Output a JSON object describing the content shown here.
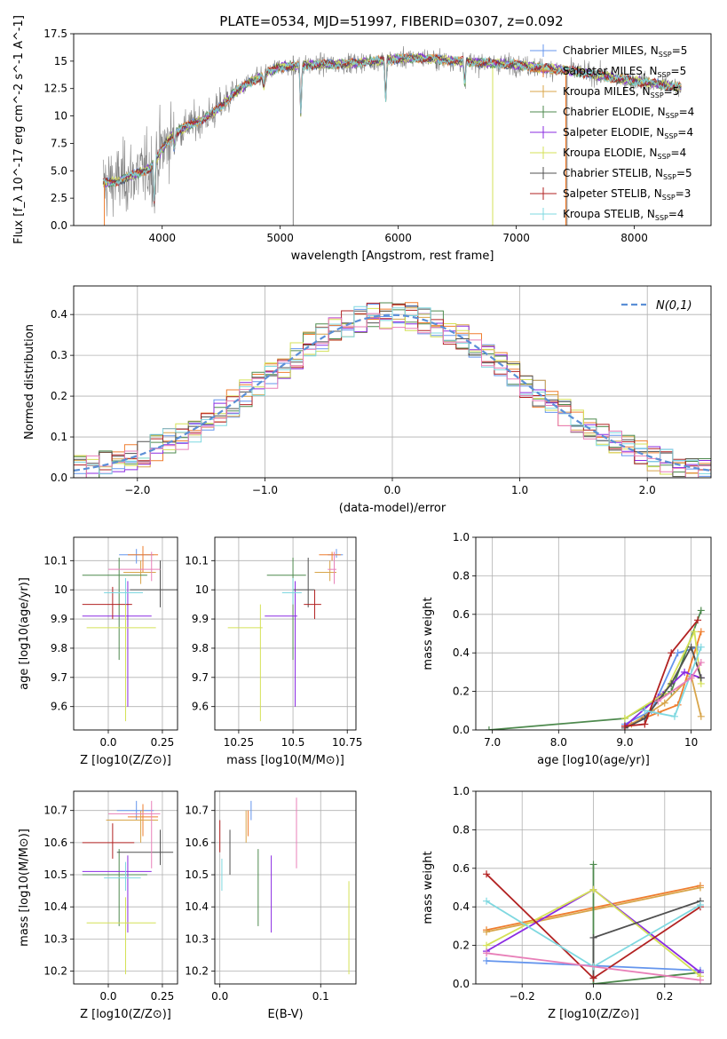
{
  "figure_title": "PLATE=0534, MJD=51997, FIBERID=0307, z=0.092",
  "colors": {
    "Chabrier MILES": "#6495ed",
    "Salpeter MILES": "#ef7d2e",
    "Kroupa MILES": "#d8a54a",
    "Chabrier ELODIE": "#4e8a4e",
    "Salpeter ELODIE": "#8a2be2",
    "Kroupa ELODIE": "#d4e157",
    "Chabrier STELIB": "#505050",
    "Salpeter STELIB": "#b22222",
    "Kroupa STELIB": "#7fd8e0",
    "data": "#808080",
    "extra_pink": "#e87fb8",
    "gaussian": "#5b8fd6",
    "grid": "#b0b0b0"
  },
  "chart_data": [
    {
      "id": "spectrum",
      "type": "line",
      "title": "PLATE=0534, MJD=51997, FIBERID=0307, z=0.092",
      "xlabel": "wavelength [Angstrom, rest frame]",
      "ylabel": "Flux [f_λ 10^-17 erg cm^-2 s^-1 A^-1]",
      "xlim": [
        3250,
        8650
      ],
      "ylim": [
        0,
        17.5
      ],
      "xticks": [
        4000,
        5000,
        6000,
        7000,
        8000
      ],
      "yticks": [
        0.0,
        2.5,
        5.0,
        7.5,
        10.0,
        12.5,
        15.0,
        17.5
      ],
      "grid": false,
      "legend_position": "top-right",
      "legend": [
        {
          "name": "Chabrier MILES",
          "label": "Chabrier MILES, N",
          "sub": "SSP",
          "n": "=5"
        },
        {
          "name": "Salpeter MILES",
          "label": "Salpeter MILES, N",
          "sub": "SSP",
          "n": "=5"
        },
        {
          "name": "Kroupa MILES",
          "label": "Kroupa MILES, N",
          "sub": "SSP",
          "n": "=5"
        },
        {
          "name": "Chabrier ELODIE",
          "label": "Chabrier ELODIE, N",
          "sub": "SSP",
          "n": "=4"
        },
        {
          "name": "Salpeter ELODIE",
          "label": "Salpeter ELODIE, N",
          "sub": "SSP",
          "n": "=4"
        },
        {
          "name": "Kroupa ELODIE",
          "label": "Kroupa ELODIE, N",
          "sub": "SSP",
          "n": "=4"
        },
        {
          "name": "Chabrier STELIB",
          "label": "Chabrier STELIB, N",
          "sub": "SSP",
          "n": "=5"
        },
        {
          "name": "Salpeter STELIB",
          "label": "Salpeter STELIB, N",
          "sub": "SSP",
          "n": "=3"
        },
        {
          "name": "Kroupa STELIB",
          "label": "Kroupa STELIB, N",
          "sub": "SSP",
          "n": "=4"
        }
      ],
      "continuum": {
        "wavelength": [
          3500,
          3600,
          3700,
          3800,
          3900,
          4000,
          4100,
          4200,
          4300,
          4400,
          4500,
          4600,
          4700,
          4800,
          4900,
          5000,
          5200,
          5400,
          5600,
          5800,
          6000,
          6200,
          6400,
          6600,
          6800,
          7000,
          7200,
          7400,
          7600,
          7800,
          8000,
          8200,
          8400
        ],
        "flux": [
          3.9,
          4.0,
          4.4,
          4.8,
          5.2,
          7.0,
          8.4,
          9.0,
          9.5,
          10.0,
          10.9,
          12.0,
          12.8,
          13.4,
          14.0,
          14.5,
          14.6,
          14.7,
          14.8,
          15.0,
          15.2,
          15.3,
          15.1,
          14.9,
          14.8,
          14.7,
          14.4,
          14.2,
          13.9,
          13.5,
          13.2,
          12.9,
          12.6
        ]
      },
      "dips": [
        {
          "wavelength": 3934,
          "flux": 1.5
        },
        {
          "wavelength": 4102,
          "flux": 6.9
        },
        {
          "wavelength": 4861,
          "flux": 12.6
        },
        {
          "wavelength": 5175,
          "flux": 9.9
        },
        {
          "wavelength": 5893,
          "flux": 11.2
        },
        {
          "wavelength": 6563,
          "flux": 12.6
        }
      ],
      "data_artifacts": [
        {
          "wavelength": 5110,
          "flux_low": 0.0,
          "flux_high": 15.5
        },
        {
          "wavelength": 7430,
          "flux_low": 0.0,
          "flux_high": 14.0
        }
      ]
    },
    {
      "id": "residuals",
      "type": "step",
      "xlabel": "(data-model)/error",
      "ylabel": "Normed distribution",
      "xlim": [
        -2.5,
        2.5
      ],
      "ylim": [
        0,
        0.47
      ],
      "xticks": [
        -2,
        -1,
        0,
        1,
        2
      ],
      "yticks": [
        0.0,
        0.1,
        0.2,
        0.3,
        0.4
      ],
      "grid": true,
      "legend_position": "top-right",
      "legend_label": "N(0,1)",
      "bin_width": 0.1,
      "bin_start": -2.5
    },
    {
      "id": "age_vs_Z",
      "type": "errorbar",
      "xlabel": "Z [log10(Z/Z⊙)]",
      "ylabel": "age [log10(age/yr)]",
      "xlim": [
        -0.16,
        0.32
      ],
      "ylim": [
        9.52,
        10.18
      ],
      "xticks": [
        0.0,
        0.25
      ],
      "yticks": [
        9.6,
        9.7,
        9.8,
        9.9,
        10.0,
        10.1
      ],
      "grid": true,
      "points": [
        {
          "series": "Chabrier MILES",
          "x": 0.13,
          "x_lo": 0.05,
          "x_hi": 0.21,
          "y": 10.12,
          "y_lo": 10.09,
          "y_hi": 10.14
        },
        {
          "series": "Salpeter MILES",
          "x": 0.16,
          "x_lo": 0.09,
          "x_hi": 0.23,
          "y": 10.12,
          "y_lo": 10.06,
          "y_hi": 10.15
        },
        {
          "series": "Kroupa MILES",
          "x": 0.15,
          "x_lo": 0.07,
          "x_hi": 0.22,
          "y": 10.06,
          "y_lo": 10.02,
          "y_hi": 10.1
        },
        {
          "series": "Chabrier ELODIE",
          "x": 0.05,
          "x_lo": -0.12,
          "x_hi": 0.18,
          "y": 10.05,
          "y_lo": 9.76,
          "y_hi": 10.11
        },
        {
          "series": "Salpeter ELODIE",
          "x": 0.09,
          "x_lo": -0.12,
          "x_hi": 0.2,
          "y": 9.91,
          "y_lo": 9.6,
          "y_hi": 10.03
        },
        {
          "series": "Kroupa ELODIE",
          "x": 0.08,
          "x_lo": -0.1,
          "x_hi": 0.22,
          "y": 9.87,
          "y_lo": 9.55,
          "y_hi": 10.03
        },
        {
          "series": "Chabrier STELIB",
          "x": 0.24,
          "x_lo": 0.1,
          "x_hi": 0.32,
          "y": 10.0,
          "y_lo": 9.94,
          "y_hi": 10.1
        },
        {
          "series": "Salpeter STELIB",
          "x": 0.02,
          "x_lo": -0.12,
          "x_hi": 0.11,
          "y": 9.95,
          "y_lo": 9.9,
          "y_hi": 10.01
        },
        {
          "series": "Kroupa STELIB",
          "x": 0.08,
          "x_lo": -0.02,
          "x_hi": 0.16,
          "y": 9.99,
          "y_lo": 9.95,
          "y_hi": 10.04
        },
        {
          "series": "extra_pink",
          "x": 0.2,
          "x_lo": 0.0,
          "x_hi": 0.24,
          "y": 10.07,
          "y_lo": 10.03,
          "y_hi": 10.13
        }
      ]
    },
    {
      "id": "age_vs_mass",
      "type": "errorbar",
      "xlabel": "mass [log10(M/M⊙)]",
      "ylabel": "",
      "xlim": [
        10.14,
        10.79
      ],
      "ylim": [
        9.52,
        10.18
      ],
      "xticks": [
        10.25,
        10.5,
        10.75
      ],
      "yticks": [
        9.6,
        9.7,
        9.8,
        9.9,
        10.0,
        10.1
      ],
      "grid": true,
      "points": [
        {
          "series": "Chabrier MILES",
          "x": 10.7,
          "x_lo": 10.66,
          "x_hi": 10.73,
          "y": 10.12,
          "y_lo": 10.11,
          "y_hi": 10.14
        },
        {
          "series": "Salpeter MILES",
          "x": 10.68,
          "x_lo": 10.62,
          "x_hi": 10.72,
          "y": 10.12,
          "y_lo": 10.1,
          "y_hi": 10.13
        },
        {
          "series": "Kroupa MILES",
          "x": 10.67,
          "x_lo": 10.6,
          "x_hi": 10.7,
          "y": 10.06,
          "y_lo": 10.03,
          "y_hi": 10.1
        },
        {
          "series": "Chabrier ELODIE",
          "x": 10.5,
          "x_lo": 10.38,
          "x_hi": 10.56,
          "y": 10.05,
          "y_lo": 9.76,
          "y_hi": 10.11
        },
        {
          "series": "Salpeter ELODIE",
          "x": 10.51,
          "x_lo": 10.37,
          "x_hi": 10.52,
          "y": 9.91,
          "y_lo": 9.6,
          "y_hi": 10.03
        },
        {
          "series": "Kroupa ELODIE",
          "x": 10.35,
          "x_lo": 10.2,
          "x_hi": 10.36,
          "y": 9.87,
          "y_lo": 9.55,
          "y_hi": 9.95
        },
        {
          "series": "Chabrier STELIB",
          "x": 10.57,
          "x_lo": 10.5,
          "x_hi": 10.6,
          "y": 10.0,
          "y_lo": 9.94,
          "y_hi": 10.11
        },
        {
          "series": "Salpeter STELIB",
          "x": 10.6,
          "x_lo": 10.55,
          "x_hi": 10.63,
          "y": 9.95,
          "y_lo": 9.9,
          "y_hi": 10.0
        },
        {
          "series": "Kroupa STELIB",
          "x": 10.5,
          "x_lo": 10.45,
          "x_hi": 10.54,
          "y": 9.99,
          "y_lo": 9.95,
          "y_hi": 10.04
        },
        {
          "series": "extra_pink",
          "x": 10.69,
          "x_lo": 10.66,
          "x_hi": 10.7,
          "y": 10.07,
          "y_lo": 10.02,
          "y_hi": 10.13
        }
      ]
    },
    {
      "id": "weight_vs_age",
      "type": "line",
      "xlabel": "age [log10(age/yr)]",
      "ylabel": "mass weight",
      "xlim": [
        6.75,
        10.3
      ],
      "ylim": [
        0,
        1.0
      ],
      "xticks": [
        7,
        8,
        9,
        10
      ],
      "yticks": [
        0.0,
        0.2,
        0.4,
        0.6,
        0.8,
        1.0
      ],
      "grid": true,
      "series": [
        {
          "name": "Chabrier MILES",
          "x": [
            9.0,
            9.4,
            9.8,
            10.1
          ],
          "y": [
            0.03,
            0.1,
            0.4,
            0.43
          ]
        },
        {
          "name": "Salpeter MILES",
          "x": [
            9.0,
            9.5,
            9.8,
            10.15
          ],
          "y": [
            0.02,
            0.09,
            0.13,
            0.51
          ]
        },
        {
          "name": "Kroupa MILES",
          "x": [
            9.1,
            9.6,
            10.0,
            10.15
          ],
          "y": [
            0.03,
            0.14,
            0.28,
            0.07
          ]
        },
        {
          "name": "Chabrier ELODIE",
          "x": [
            6.95,
            9.0,
            9.7,
            10.15
          ],
          "y": [
            0.0,
            0.06,
            0.2,
            0.62
          ]
        },
        {
          "name": "Salpeter ELODIE",
          "x": [
            9.0,
            9.5,
            9.9,
            10.15
          ],
          "y": [
            0.02,
            0.17,
            0.3,
            0.27
          ]
        },
        {
          "name": "Kroupa ELODIE",
          "x": [
            9.0,
            9.6,
            10.05,
            10.15
          ],
          "y": [
            0.06,
            0.19,
            0.51,
            0.24
          ]
        },
        {
          "name": "Chabrier STELIB",
          "x": [
            9.0,
            9.3,
            9.7,
            10.0,
            10.15
          ],
          "y": [
            0.01,
            0.06,
            0.24,
            0.43,
            0.27
          ]
        },
        {
          "name": "Salpeter STELIB",
          "x": [
            9.0,
            9.3,
            9.7,
            10.1
          ],
          "y": [
            0.02,
            0.03,
            0.4,
            0.57
          ]
        },
        {
          "name": "Kroupa STELIB",
          "x": [
            9.3,
            9.75,
            10.15
          ],
          "y": [
            0.1,
            0.07,
            0.43
          ]
        },
        {
          "name": "extra_pink",
          "x": [
            9.5,
            10.0,
            10.15
          ],
          "y": [
            0.15,
            0.27,
            0.35
          ]
        }
      ]
    },
    {
      "id": "mass_vs_Z",
      "type": "errorbar",
      "xlabel": "Z [log10(Z/Z⊙)]",
      "ylabel": "mass [log10(M/M⊙)]",
      "xlim": [
        -0.16,
        0.32
      ],
      "ylim": [
        10.16,
        10.76
      ],
      "xticks": [
        0.0,
        0.25
      ],
      "yticks": [
        10.2,
        10.3,
        10.4,
        10.5,
        10.6,
        10.7
      ],
      "grid": true,
      "points": [
        {
          "series": "Chabrier MILES",
          "x": 0.13,
          "x_lo": 0.04,
          "x_hi": 0.21,
          "y": 10.7,
          "y_lo": 10.67,
          "y_hi": 10.73
        },
        {
          "series": "Salpeter MILES",
          "x": 0.16,
          "x_lo": 0.09,
          "x_hi": 0.23,
          "y": 10.68,
          "y_lo": 10.62,
          "y_hi": 10.72
        },
        {
          "series": "Kroupa MILES",
          "x": 0.15,
          "x_lo": -0.01,
          "x_hi": 0.23,
          "y": 10.67,
          "y_lo": 10.6,
          "y_hi": 10.7
        },
        {
          "series": "Chabrier ELODIE",
          "x": 0.05,
          "x_lo": -0.12,
          "x_hi": 0.18,
          "y": 10.5,
          "y_lo": 10.34,
          "y_hi": 10.58
        },
        {
          "series": "Salpeter ELODIE",
          "x": 0.09,
          "x_lo": -0.12,
          "x_hi": 0.2,
          "y": 10.51,
          "y_lo": 10.32,
          "y_hi": 10.56
        },
        {
          "series": "Kroupa ELODIE",
          "x": 0.08,
          "x_lo": -0.1,
          "x_hi": 0.22,
          "y": 10.35,
          "y_lo": 10.19,
          "y_hi": 10.43
        },
        {
          "series": "Chabrier STELIB",
          "x": 0.24,
          "x_lo": 0.04,
          "x_hi": 0.3,
          "y": 10.57,
          "y_lo": 10.53,
          "y_hi": 10.64
        },
        {
          "series": "Salpeter STELIB",
          "x": 0.02,
          "x_lo": -0.12,
          "x_hi": 0.12,
          "y": 10.6,
          "y_lo": 10.55,
          "y_hi": 10.66
        },
        {
          "series": "Kroupa STELIB",
          "x": 0.08,
          "x_lo": -0.02,
          "x_hi": 0.15,
          "y": 10.49,
          "y_lo": 10.45,
          "y_hi": 10.54
        },
        {
          "series": "extra_pink",
          "x": 0.2,
          "x_lo": 0.0,
          "x_hi": 0.24,
          "y": 10.69,
          "y_lo": 10.52,
          "y_hi": 10.73
        }
      ]
    },
    {
      "id": "mass_vs_ebv",
      "type": "errorbar",
      "xlabel": "E(B-V)",
      "ylabel": "",
      "xlim": [
        -0.005,
        0.135
      ],
      "ylim": [
        10.16,
        10.76
      ],
      "xticks": [
        0.0,
        0.1
      ],
      "yticks": [
        10.2,
        10.3,
        10.4,
        10.5,
        10.6,
        10.7
      ],
      "grid": true,
      "points": [
        {
          "series": "Chabrier MILES",
          "x": 0.031,
          "y": 10.7,
          "y_lo": 10.67,
          "y_hi": 10.73
        },
        {
          "series": "Salpeter MILES",
          "x": 0.028,
          "y": 10.67,
          "y_lo": 10.62,
          "y_hi": 10.7
        },
        {
          "series": "Kroupa MILES",
          "x": 0.026,
          "y": 10.66,
          "y_lo": 10.6,
          "y_hi": 10.7
        },
        {
          "series": "Chabrier ELODIE",
          "x": 0.038,
          "y": 10.5,
          "y_lo": 10.34,
          "y_hi": 10.58
        },
        {
          "series": "Salpeter ELODIE",
          "x": 0.051,
          "y": 10.5,
          "y_lo": 10.32,
          "y_hi": 10.56
        },
        {
          "series": "Kroupa ELODIE",
          "x": 0.128,
          "y": 10.35,
          "y_lo": 10.19,
          "y_hi": 10.48
        },
        {
          "series": "Chabrier STELIB",
          "x": 0.01,
          "y": 10.57,
          "y_lo": 10.5,
          "y_hi": 10.64
        },
        {
          "series": "Salpeter STELIB",
          "x": 0.0,
          "y": 10.62,
          "y_lo": 10.57,
          "y_hi": 10.67
        },
        {
          "series": "Kroupa STELIB",
          "x": 0.002,
          "y": 10.5,
          "y_lo": 10.45,
          "y_hi": 10.55
        },
        {
          "series": "extra_pink",
          "x": 0.076,
          "y": 10.65,
          "y_lo": 10.52,
          "y_hi": 10.74
        }
      ]
    },
    {
      "id": "weight_vs_Z",
      "type": "line",
      "xlabel": "Z [log10(Z/Z⊙)]",
      "ylabel": "mass weight",
      "xlim": [
        -0.33,
        0.33
      ],
      "ylim": [
        0,
        1.0
      ],
      "xticks": [
        -0.2,
        0.0,
        0.2
      ],
      "yticks": [
        0.0,
        0.2,
        0.4,
        0.6,
        0.8,
        1.0
      ],
      "grid": true,
      "series": [
        {
          "name": "Chabrier MILES",
          "x": [
            -0.3,
            0.3
          ],
          "y": [
            0.12,
            0.07
          ]
        },
        {
          "name": "Salpeter MILES",
          "x": [
            -0.3,
            0.3
          ],
          "y": [
            0.28,
            0.51
          ]
        },
        {
          "name": "Kroupa MILES",
          "x": [
            -0.3,
            0.3
          ],
          "y": [
            0.27,
            0.5
          ]
        },
        {
          "name": "Chabrier ELODIE",
          "x": [
            0.0,
            0.0,
            0.3
          ],
          "y": [
            0.62,
            0.0,
            0.06
          ]
        },
        {
          "name": "Salpeter ELODIE",
          "x": [
            -0.3,
            0.0,
            0.3
          ],
          "y": [
            0.17,
            0.49,
            0.06
          ]
        },
        {
          "name": "Kroupa ELODIE",
          "x": [
            -0.3,
            0.0,
            0.3
          ],
          "y": [
            0.2,
            0.49,
            0.04
          ]
        },
        {
          "name": "Chabrier STELIB",
          "x": [
            0.0,
            0.0,
            0.3
          ],
          "y": [
            0.03,
            0.24,
            0.43
          ]
        },
        {
          "name": "Salpeter STELIB",
          "x": [
            -0.3,
            0.0,
            0.3
          ],
          "y": [
            0.57,
            0.03,
            0.4
          ]
        },
        {
          "name": "Kroupa STELIB",
          "x": [
            -0.3,
            0.0,
            0.3
          ],
          "y": [
            0.43,
            0.09,
            0.41
          ]
        },
        {
          "name": "extra_pink",
          "x": [
            -0.3,
            0.3
          ],
          "y": [
            0.16,
            0.02
          ]
        }
      ]
    }
  ]
}
